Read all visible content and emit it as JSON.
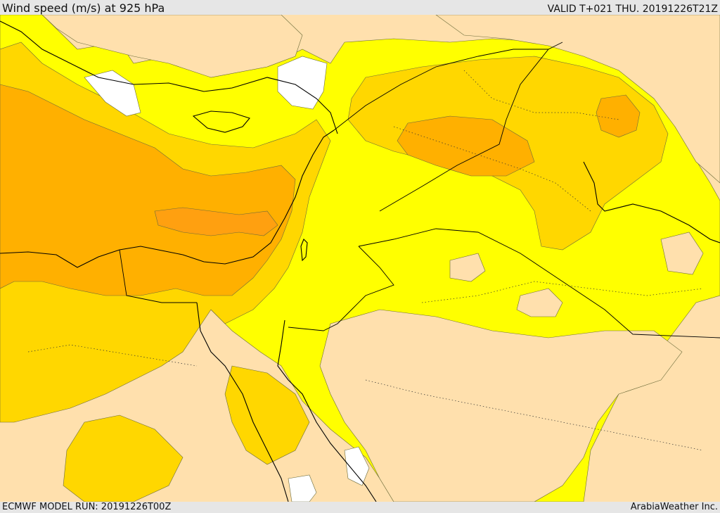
{
  "header": {
    "title": "Wind speed (m/s) at 925 hPa",
    "valid_time": "VALID T+021 THU. 20191226T21Z"
  },
  "footer": {
    "model_run": "ECMWF MODEL RUN: 20191226T00Z",
    "credit": "ArabiaWeather Inc."
  },
  "colors": {
    "background": "#e6e6e6",
    "wind_very_light": "#ffe0ad",
    "wind_light": "#ffff00",
    "wind_moderate": "#ffd700",
    "wind_strong": "#ffb000",
    "wind_very_strong": "#ffa010",
    "no_data_white": "#ffffff",
    "coastline": "#000000"
  }
}
